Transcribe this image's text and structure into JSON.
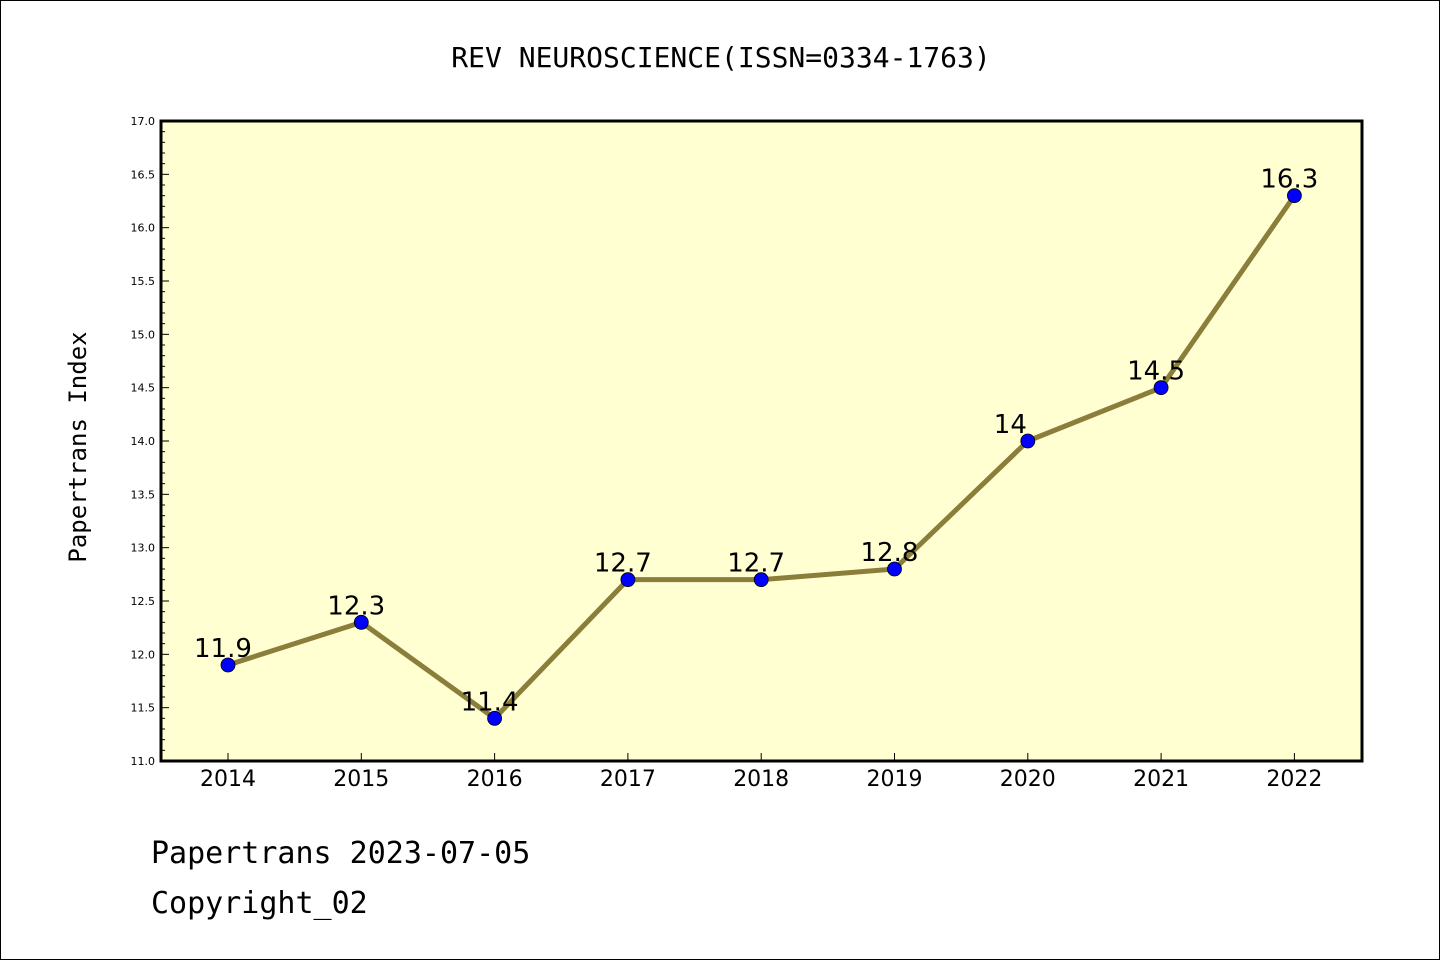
{
  "chart_data": {
    "type": "line",
    "title": "REV NEUROSCIENCE(ISSN=0334-1763)",
    "xlabel": "",
    "ylabel": "Papertrans Index",
    "categories": [
      "2014",
      "2015",
      "2016",
      "2017",
      "2018",
      "2019",
      "2020",
      "2021",
      "2022"
    ],
    "series": [
      {
        "values": [
          11.9,
          12.3,
          11.4,
          12.7,
          12.7,
          12.8,
          14,
          14.5,
          16.3
        ],
        "data_labels": [
          "11.9",
          "12.3",
          "11.4",
          "12.7",
          "12.7",
          "12.8",
          "14",
          "14.5",
          "16.3"
        ],
        "line_color": "#8b7d3a",
        "marker_color": "#0000ff"
      }
    ],
    "ylim": [
      11.0,
      17.0
    ],
    "yticks": [
      "11.0",
      "11.5",
      "12.0",
      "12.5",
      "13.0",
      "13.5",
      "14.0",
      "14.5",
      "15.0",
      "15.5",
      "16.0",
      "16.5",
      "17.0"
    ],
    "plot_background": "#ffffd2",
    "grid": false,
    "legend": "none"
  },
  "footer": {
    "line1": "Papertrans 2023-07-05",
    "line2": "Copyright_02"
  }
}
